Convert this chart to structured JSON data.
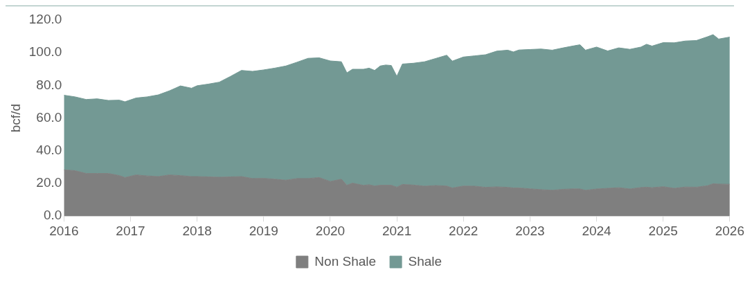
{
  "chart_data": {
    "type": "area",
    "ylabel": "bcf/d",
    "stacked": true,
    "x": [
      "2016-01",
      "2016-03",
      "2016-05",
      "2016-07",
      "2016-09",
      "2016-11",
      "2016-12",
      "2017-02",
      "2017-04",
      "2017-06",
      "2017-08",
      "2017-10",
      "2017-12",
      "2018-01",
      "2018-03",
      "2018-05",
      "2018-07",
      "2018-09",
      "2018-11",
      "2019-01",
      "2019-03",
      "2019-05",
      "2019-07",
      "2019-09",
      "2019-11",
      "2020-01",
      "2020-03",
      "2020-04",
      "2020-05",
      "2020-07",
      "2020-08",
      "2020-09",
      "2020-10",
      "2020-11",
      "2020-12",
      "2021-01",
      "2021-02",
      "2021-04",
      "2021-06",
      "2021-08",
      "2021-10",
      "2021-11",
      "2022-01",
      "2022-03",
      "2022-05",
      "2022-07",
      "2022-09",
      "2022-10",
      "2022-11",
      "2023-01",
      "2023-03",
      "2023-05",
      "2023-07",
      "2023-09",
      "2023-10",
      "2023-11",
      "2024-01",
      "2024-03",
      "2024-05",
      "2024-07",
      "2024-09",
      "2024-10",
      "2024-11",
      "2025-01",
      "2025-03",
      "2025-05",
      "2025-07",
      "2025-09",
      "2025-10",
      "2025-11",
      "2026-01"
    ],
    "series": [
      {
        "name": "Non Shale",
        "color": "#7f7f7f",
        "values": [
          28.3,
          27.8,
          26.1,
          26.1,
          26.1,
          24.8,
          23.6,
          25.2,
          24.6,
          24.2,
          25.2,
          24.8,
          24.2,
          24.2,
          24.0,
          23.8,
          24.0,
          24.2,
          23.0,
          23.1,
          22.6,
          22.0,
          23.0,
          23.0,
          23.6,
          21.2,
          22.6,
          18.9,
          20.2,
          18.8,
          19.2,
          18.4,
          18.9,
          18.9,
          18.9,
          17.7,
          19.4,
          19.0,
          18.3,
          18.7,
          18.4,
          17.2,
          18.4,
          18.3,
          17.6,
          17.9,
          17.6,
          17.2,
          17.2,
          16.7,
          16.2,
          15.8,
          16.4,
          16.7,
          16.6,
          15.8,
          16.6,
          17.0,
          17.4,
          16.6,
          17.5,
          17.7,
          17.4,
          18.0,
          17.0,
          17.8,
          17.7,
          18.6,
          19.8,
          19.6,
          19.5
        ]
      },
      {
        "name": "Shale",
        "color": "#739994",
        "values": [
          45.7,
          45.2,
          45.3,
          45.7,
          44.7,
          46.2,
          46.4,
          47.1,
          48.4,
          50.0,
          51.5,
          54.9,
          54.1,
          55.6,
          56.8,
          58.2,
          61.5,
          65.0,
          65.6,
          66.4,
          68.0,
          69.9,
          71.2,
          73.6,
          73.3,
          73.8,
          71.9,
          68.8,
          69.7,
          71.1,
          71.4,
          70.8,
          73.0,
          73.6,
          73.3,
          67.9,
          73.7,
          74.6,
          76.2,
          77.8,
          80.1,
          77.7,
          79.0,
          79.8,
          81.2,
          83.1,
          84.0,
          83.3,
          84.5,
          85.3,
          86.1,
          85.8,
          86.6,
          87.6,
          88.3,
          85.8,
          86.9,
          84.1,
          85.6,
          85.5,
          86.0,
          87.5,
          86.7,
          88.2,
          89.1,
          89.4,
          89.8,
          91.2,
          91.3,
          88.8,
          90.1
        ]
      }
    ],
    "xlim": [
      "2016",
      "2026"
    ],
    "xticks": [
      "2016",
      "2017",
      "2018",
      "2019",
      "2020",
      "2021",
      "2022",
      "2023",
      "2024",
      "2025",
      "2026"
    ],
    "ylim": [
      0,
      120
    ],
    "yticks": [
      {
        "value": 0,
        "label": "0.0"
      },
      {
        "value": 20,
        "label": "20.0"
      },
      {
        "value": 40,
        "label": "40.0"
      },
      {
        "value": 60,
        "label": "60.0"
      },
      {
        "value": 80,
        "label": "80.0"
      },
      {
        "value": 100,
        "label": "100.0"
      },
      {
        "value": 120,
        "label": "120.0"
      }
    ],
    "grid": false,
    "legend": "bottom"
  }
}
